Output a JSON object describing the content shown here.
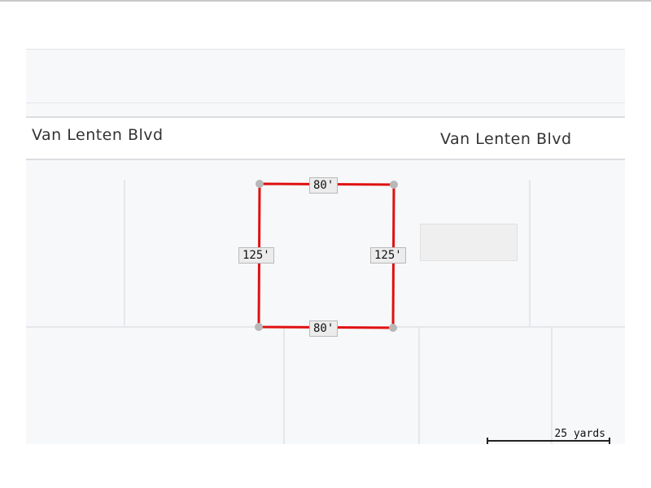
{
  "map": {
    "streets": [
      "Van Lenten Blvd",
      "Van Lenten Blvd"
    ],
    "parcel": {
      "color": "#e01010",
      "top": "80'",
      "bottom": "80'",
      "left": "125'",
      "right": "125'"
    },
    "scale_label": "25 yards"
  }
}
